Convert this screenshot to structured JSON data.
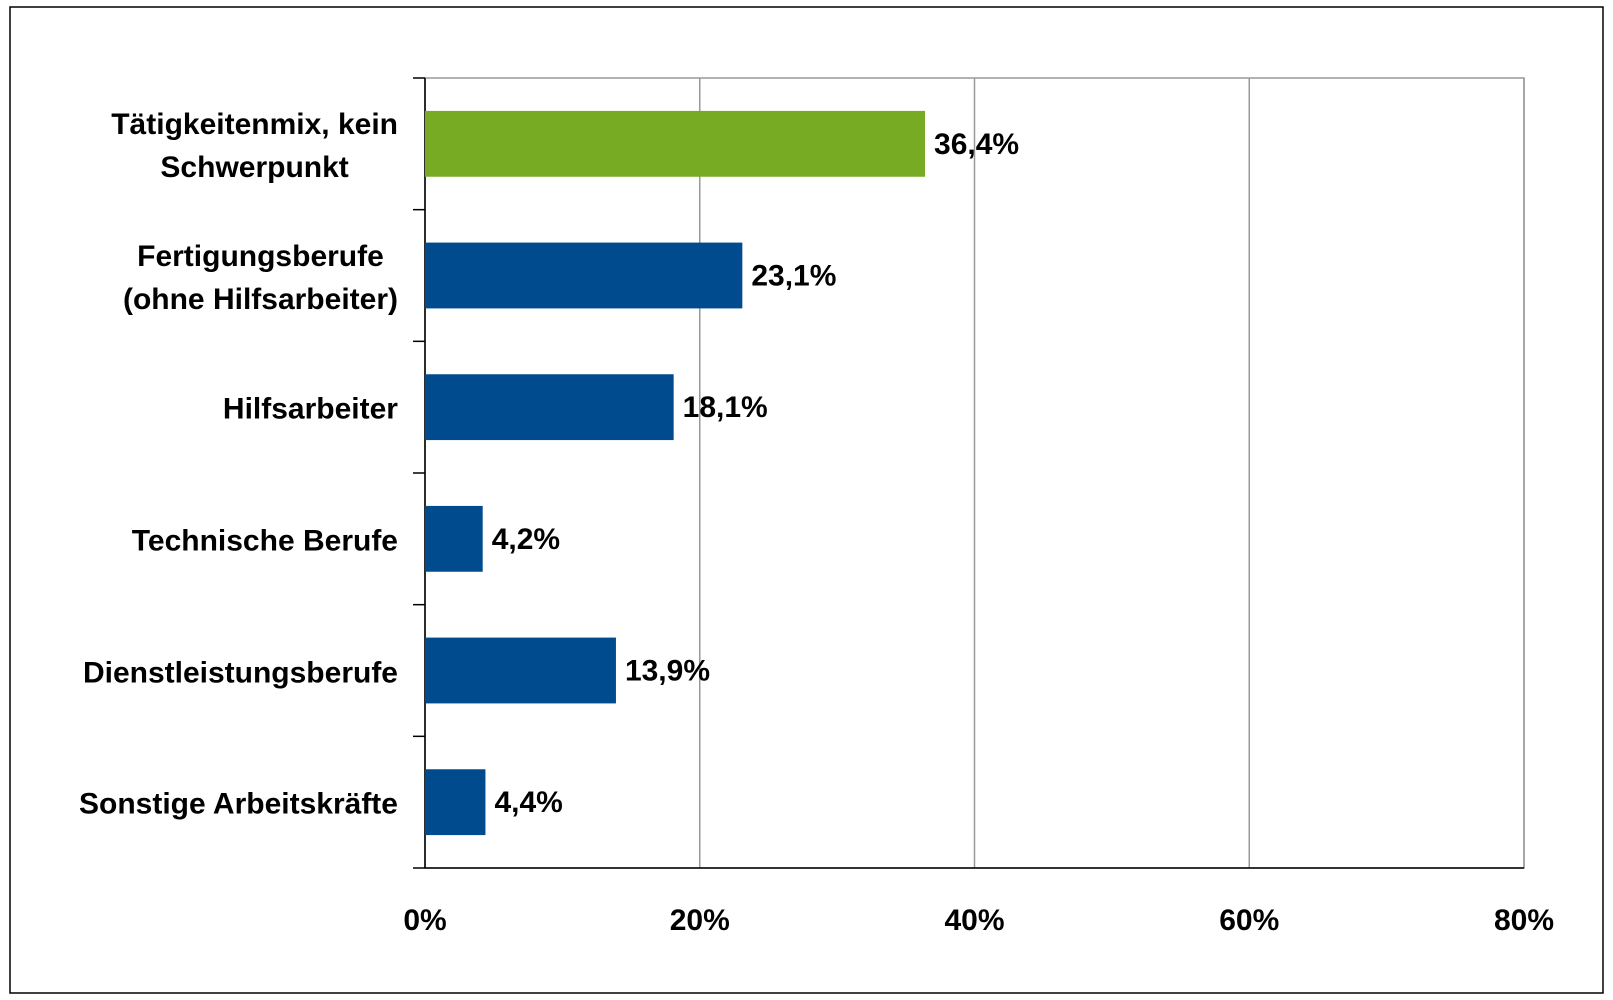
{
  "chart_data": {
    "type": "bar",
    "orientation": "horizontal",
    "categories": [
      "Tätigkeitenmix, kein\nSchwerpunkt",
      "Fertigungsberufe\n(ohne Hilfsarbeiter)",
      "Hilfsarbeiter",
      "Technische Berufe",
      "Dienstleistungsberufe",
      "Sonstige Arbeitskräfte"
    ],
    "values": [
      36.4,
      23.1,
      18.1,
      4.2,
      13.9,
      4.4
    ],
    "value_labels": [
      "36,4%",
      "23,1%",
      "18,1%",
      "4,2%",
      "13,9%",
      "4,4%"
    ],
    "colors": [
      "#76ab23",
      "#004b8d",
      "#004b8d",
      "#004b8d",
      "#004b8d",
      "#004b8d"
    ],
    "xlim": [
      0,
      80
    ],
    "xticks": [
      {
        "value": 0,
        "label": "0%"
      },
      {
        "value": 20,
        "label": "20%"
      },
      {
        "value": 40,
        "label": "40%"
      },
      {
        "value": 60,
        "label": "60%"
      },
      {
        "value": 80,
        "label": "80%"
      }
    ],
    "grid": true
  }
}
